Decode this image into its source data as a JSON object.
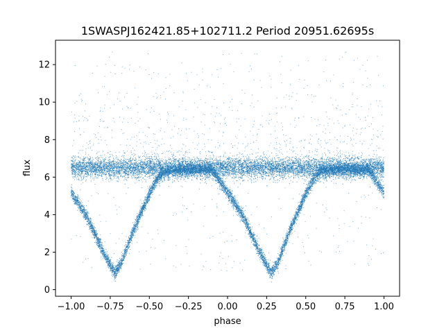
{
  "chart_data": {
    "type": "scatter",
    "title": "1SWASPJ162421.85+102711.2 Period 20951.62695s",
    "xlabel": "phase",
    "ylabel": "flux",
    "xlim": [
      -1.1,
      1.1
    ],
    "ylim": [
      -0.35,
      13.3
    ],
    "xticks": [
      -1.0,
      -0.75,
      -0.5,
      -0.25,
      0.0,
      0.25,
      0.5,
      0.75,
      1.0
    ],
    "xtick_labels": [
      "−1.00",
      "−0.75",
      "−0.50",
      "−0.25",
      "0.00",
      "0.25",
      "0.50",
      "0.75",
      "1.00"
    ],
    "yticks": [
      0,
      2,
      4,
      6,
      8,
      10,
      12
    ],
    "ytick_labels": [
      "0",
      "2",
      "4",
      "6",
      "8",
      "10",
      "12"
    ],
    "grid": false,
    "legend": "none",
    "point_color": "#1f77b4",
    "series": [
      {
        "x": [
          -1.0,
          -0.9,
          -0.8,
          -0.75,
          -0.72,
          -0.68,
          -0.6,
          -0.5,
          -0.45,
          -0.4,
          -0.3,
          -0.2,
          -0.1,
          0.0,
          0.1,
          0.2,
          0.25,
          0.28,
          0.32,
          0.4,
          0.5,
          0.55,
          0.6,
          0.7,
          0.8,
          0.9,
          1.0
        ],
        "y": [
          5.2,
          3.9,
          2.1,
          1.3,
          0.9,
          1.4,
          3.2,
          5.1,
          5.9,
          6.3,
          6.4,
          6.4,
          6.4,
          5.2,
          3.9,
          2.1,
          1.3,
          0.9,
          1.4,
          3.2,
          5.1,
          5.9,
          6.3,
          6.4,
          6.4,
          6.4,
          5.2
        ]
      }
    ]
  }
}
